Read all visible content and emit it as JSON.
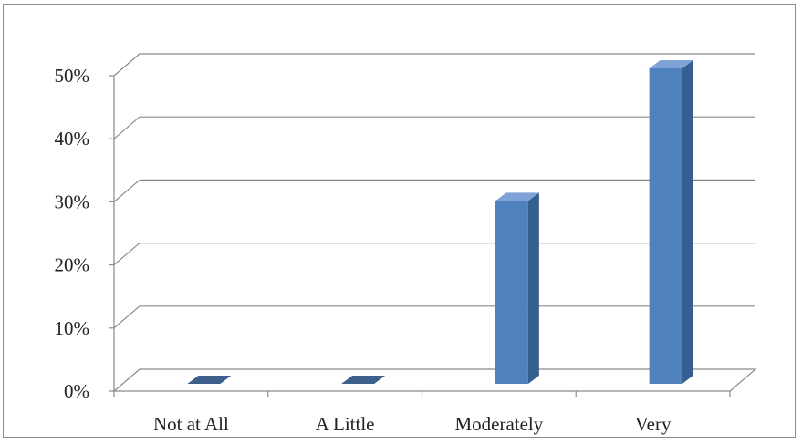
{
  "chart_data": {
    "type": "bar",
    "title": "",
    "xlabel": "",
    "ylabel": "",
    "categories": [
      "Not at All",
      "A Little",
      "Moderately",
      "Very"
    ],
    "values": [
      0,
      0,
      29,
      50
    ],
    "ylim": [
      0,
      50
    ],
    "yticks": [
      "0%",
      "10%",
      "20%",
      "30%",
      "40%",
      "50%"
    ],
    "grid": true,
    "style": "3d-column",
    "colors": {
      "bar_front": "#4f81bd",
      "bar_side": "#365f91",
      "bar_top": "#7fa3d6",
      "grid": "#8a8a8a"
    }
  }
}
